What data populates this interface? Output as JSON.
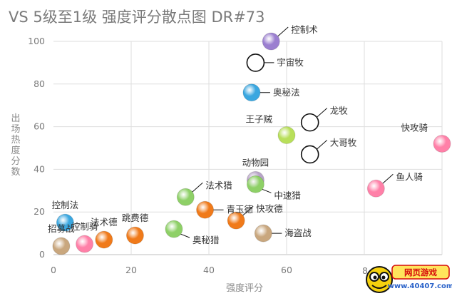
{
  "chart_data": {
    "type": "scatter",
    "title": "VS 5级至1级 强度评分散点图 DR#73",
    "xlabel": "强度评分",
    "ylabel": "出场热度分数",
    "xlim": [
      0,
      100
    ],
    "ylim": [
      0,
      100
    ],
    "x_ticks": [
      0,
      20,
      40,
      60,
      80
    ],
    "y_ticks": [
      0,
      20,
      40,
      60,
      80,
      100
    ],
    "grid": true,
    "points": [
      {
        "label": "控制术",
        "x": 56,
        "y": 100,
        "color": "#9b7fd0",
        "label_pos": "right-up"
      },
      {
        "label": "宇宙牧",
        "x": 52,
        "y": 90,
        "color": "#ffffff",
        "label_pos": "right"
      },
      {
        "label": "奥秘法",
        "x": 51,
        "y": 76,
        "color": "#3aa7e0",
        "label_pos": "right"
      },
      {
        "label": "龙牧",
        "x": 66,
        "y": 62,
        "color": "#ffffff",
        "label_pos": "right-up"
      },
      {
        "label": "王子贼",
        "x": 60,
        "y": 56,
        "color": "#b8df5a",
        "label_pos": "left-up"
      },
      {
        "label": "大哥牧",
        "x": 66,
        "y": 47,
        "color": "#ffffff",
        "label_pos": "right-up"
      },
      {
        "label": "快攻骑",
        "x": 100,
        "y": 52,
        "color": "#ff80a8",
        "label_pos": "left-up"
      },
      {
        "label": "动物园",
        "x": 52,
        "y": 35,
        "color": "#b8a4c8",
        "label_pos": "up"
      },
      {
        "label": "中速猎",
        "x": 52,
        "y": 33,
        "color": "#8ed067",
        "label_pos": "right-down"
      },
      {
        "label": "鱼人骑",
        "x": 83,
        "y": 31,
        "color": "#ff80a8",
        "label_pos": "right-up"
      },
      {
        "label": "法术猎",
        "x": 34,
        "y": 27,
        "color": "#8ed067",
        "label_pos": "right-up"
      },
      {
        "label": "青玉德",
        "x": 39,
        "y": 21,
        "color": "#f07a1a",
        "label_pos": "right"
      },
      {
        "label": "快攻德",
        "x": 47,
        "y": 16,
        "color": "#f07a1a",
        "label_pos": "right-up"
      },
      {
        "label": "跳费德",
        "x": 21,
        "y": 9,
        "color": "#f07a1a",
        "label_pos": "up"
      },
      {
        "label": "法术德",
        "x": 13,
        "y": 7,
        "color": "#f07a1a",
        "label_pos": "up"
      },
      {
        "label": "奥秘猎",
        "x": 31,
        "y": 12,
        "color": "#8ed067",
        "label_pos": "right-down"
      },
      {
        "label": "海盗战",
        "x": 54,
        "y": 10,
        "color": "#c9a77e",
        "label_pos": "right"
      },
      {
        "label": "控制法",
        "x": 3,
        "y": 15,
        "color": "#3aa7e0",
        "label_pos": "up"
      },
      {
        "label": "控制骑",
        "x": 8,
        "y": 5,
        "color": "#ff80a8",
        "label_pos": "up"
      },
      {
        "label": "招募战",
        "x": 2,
        "y": 4,
        "color": "#c9a77e",
        "label_pos": "up"
      }
    ]
  },
  "watermark": {
    "text": "网页游戏",
    "site": "www.40407.com",
    "axis_partial_tick": "8"
  }
}
